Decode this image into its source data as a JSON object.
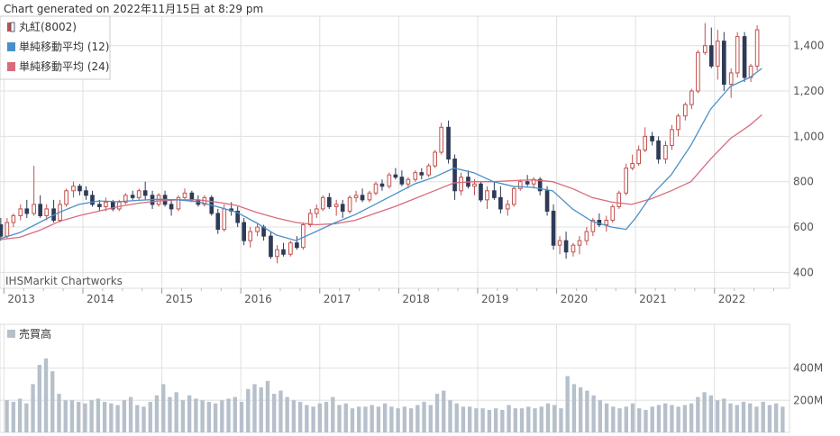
{
  "generated_text": "Chart generated on 2022年11月15日 at 8:29 pm",
  "watermark": "IHSMarkit Chartworks",
  "legend": [
    {
      "label": "丸紅(8002)",
      "color": "#c0504d",
      "kind": "candle"
    },
    {
      "label": "単純移動平均 (12)",
      "color": "#4a90c8",
      "kind": "box"
    },
    {
      "label": "単純移動平均 (24)",
      "color": "#d96b7d",
      "kind": "box"
    }
  ],
  "volume_legend": {
    "label": "売買高",
    "color": "#b6c0cb"
  },
  "colors": {
    "up": "#c0504d",
    "down": "#2e3a56",
    "sma12": "#4a90c8",
    "sma24": "#d96b7d",
    "volume": "#b6c0cb",
    "grid": "#e0e0e0"
  },
  "chart_data": [
    {
      "type": "candlestick",
      "series": [
        {
          "name": "丸紅(8002)",
          "role": "ohlc"
        },
        {
          "name": "単純移動平均 (12)",
          "role": "sma",
          "window": 12
        },
        {
          "name": "単純移動平均 (24)",
          "role": "sma",
          "window": 24
        }
      ],
      "x_labels": [
        "2013",
        "2014",
        "2015",
        "2016",
        "2017",
        "2018",
        "2019",
        "2020",
        "2021",
        "2022"
      ],
      "xlim": [
        2012.95,
        2022.95
      ],
      "y_ticks": [
        "400",
        "600",
        "800",
        "1,000",
        "1,200",
        "1,400"
      ],
      "y_tick_values": [
        400,
        600,
        800,
        1000,
        1200,
        1400
      ],
      "ylim": [
        330,
        1530
      ],
      "ohlc": [
        [
          2012.96,
          610,
          640,
          540,
          560
        ],
        [
          2013.04,
          560,
          640,
          550,
          620
        ],
        [
          2013.12,
          620,
          660,
          600,
          650
        ],
        [
          2013.21,
          650,
          700,
          630,
          680
        ],
        [
          2013.29,
          680,
          720,
          640,
          660
        ],
        [
          2013.38,
          660,
          870,
          650,
          700
        ],
        [
          2013.46,
          700,
          740,
          640,
          650
        ],
        [
          2013.54,
          650,
          700,
          630,
          680
        ],
        [
          2013.63,
          680,
          720,
          620,
          630
        ],
        [
          2013.71,
          630,
          720,
          620,
          700
        ],
        [
          2013.79,
          700,
          770,
          690,
          760
        ],
        [
          2013.88,
          760,
          800,
          730,
          780
        ],
        [
          2013.96,
          780,
          790,
          740,
          760
        ],
        [
          2014.04,
          760,
          780,
          720,
          740
        ],
        [
          2014.12,
          740,
          760,
          690,
          700
        ],
        [
          2014.21,
          700,
          720,
          670,
          690
        ],
        [
          2014.29,
          690,
          730,
          670,
          710
        ],
        [
          2014.38,
          710,
          720,
          670,
          680
        ],
        [
          2014.46,
          680,
          720,
          670,
          710
        ],
        [
          2014.54,
          710,
          750,
          700,
          740
        ],
        [
          2014.63,
          740,
          760,
          720,
          730
        ],
        [
          2014.71,
          730,
          770,
          720,
          760
        ],
        [
          2014.79,
          760,
          800,
          720,
          740
        ],
        [
          2014.88,
          740,
          760,
          680,
          700
        ],
        [
          2014.96,
          700,
          750,
          690,
          740
        ],
        [
          2015.04,
          740,
          760,
          690,
          700
        ],
        [
          2015.12,
          700,
          720,
          650,
          680
        ],
        [
          2015.21,
          680,
          740,
          670,
          730
        ],
        [
          2015.29,
          730,
          770,
          720,
          750
        ],
        [
          2015.38,
          750,
          760,
          710,
          720
        ],
        [
          2015.46,
          720,
          740,
          690,
          700
        ],
        [
          2015.54,
          700,
          740,
          690,
          730
        ],
        [
          2015.63,
          730,
          740,
          650,
          660
        ],
        [
          2015.71,
          660,
          680,
          570,
          590
        ],
        [
          2015.79,
          590,
          700,
          580,
          680
        ],
        [
          2015.88,
          680,
          710,
          650,
          670
        ],
        [
          2015.96,
          670,
          690,
          600,
          620
        ],
        [
          2016.04,
          620,
          640,
          520,
          540
        ],
        [
          2016.12,
          540,
          600,
          510,
          580
        ],
        [
          2016.21,
          580,
          620,
          560,
          600
        ],
        [
          2016.29,
          600,
          610,
          540,
          560
        ],
        [
          2016.38,
          560,
          580,
          460,
          470
        ],
        [
          2016.46,
          470,
          520,
          440,
          500
        ],
        [
          2016.54,
          500,
          530,
          470,
          480
        ],
        [
          2016.63,
          480,
          540,
          470,
          530
        ],
        [
          2016.71,
          530,
          560,
          500,
          510
        ],
        [
          2016.79,
          510,
          620,
          500,
          610
        ],
        [
          2016.88,
          610,
          680,
          600,
          660
        ],
        [
          2016.96,
          660,
          700,
          640,
          680
        ],
        [
          2017.04,
          680,
          740,
          670,
          730
        ],
        [
          2017.12,
          730,
          750,
          680,
          690
        ],
        [
          2017.21,
          690,
          720,
          650,
          700
        ],
        [
          2017.29,
          700,
          720,
          640,
          670
        ],
        [
          2017.38,
          670,
          740,
          660,
          730
        ],
        [
          2017.46,
          730,
          760,
          710,
          740
        ],
        [
          2017.54,
          740,
          770,
          710,
          720
        ],
        [
          2017.63,
          720,
          760,
          710,
          750
        ],
        [
          2017.71,
          750,
          800,
          740,
          790
        ],
        [
          2017.79,
          790,
          810,
          760,
          780
        ],
        [
          2017.88,
          780,
          840,
          770,
          830
        ],
        [
          2017.96,
          830,
          860,
          810,
          820
        ],
        [
          2018.04,
          820,
          850,
          780,
          790
        ],
        [
          2018.12,
          790,
          820,
          770,
          810
        ],
        [
          2018.21,
          810,
          850,
          800,
          840
        ],
        [
          2018.29,
          840,
          860,
          810,
          830
        ],
        [
          2018.38,
          830,
          880,
          820,
          870
        ],
        [
          2018.46,
          870,
          940,
          860,
          930
        ],
        [
          2018.54,
          930,
          1060,
          920,
          1040
        ],
        [
          2018.63,
          1040,
          1070,
          880,
          900
        ],
        [
          2018.71,
          900,
          920,
          720,
          760
        ],
        [
          2018.79,
          760,
          840,
          740,
          820
        ],
        [
          2018.88,
          820,
          850,
          770,
          780
        ],
        [
          2018.96,
          780,
          810,
          740,
          790
        ],
        [
          2019.04,
          790,
          800,
          710,
          720
        ],
        [
          2019.12,
          720,
          780,
          680,
          760
        ],
        [
          2019.21,
          760,
          800,
          720,
          730
        ],
        [
          2019.29,
          730,
          780,
          660,
          680
        ],
        [
          2019.38,
          680,
          720,
          650,
          700
        ],
        [
          2019.46,
          700,
          780,
          690,
          770
        ],
        [
          2019.54,
          770,
          810,
          760,
          800
        ],
        [
          2019.63,
          800,
          830,
          780,
          790
        ],
        [
          2019.71,
          790,
          820,
          770,
          810
        ],
        [
          2019.79,
          810,
          820,
          740,
          760
        ],
        [
          2019.88,
          760,
          780,
          650,
          670
        ],
        [
          2019.96,
          670,
          700,
          500,
          520
        ],
        [
          2020.04,
          520,
          560,
          480,
          540
        ],
        [
          2020.12,
          540,
          580,
          460,
          490
        ],
        [
          2020.21,
          490,
          530,
          470,
          520
        ],
        [
          2020.29,
          520,
          560,
          480,
          540
        ],
        [
          2020.38,
          540,
          600,
          520,
          580
        ],
        [
          2020.46,
          580,
          640,
          560,
          630
        ],
        [
          2020.54,
          630,
          660,
          600,
          610
        ],
        [
          2020.63,
          610,
          650,
          580,
          630
        ],
        [
          2020.71,
          630,
          700,
          620,
          690
        ],
        [
          2020.79,
          690,
          760,
          680,
          750
        ],
        [
          2020.88,
          750,
          880,
          740,
          860
        ],
        [
          2020.96,
          860,
          920,
          850,
          880
        ],
        [
          2021.04,
          880,
          960,
          870,
          940
        ],
        [
          2021.12,
          940,
          1040,
          930,
          1000
        ],
        [
          2021.21,
          1000,
          1020,
          960,
          980
        ],
        [
          2021.29,
          980,
          1000,
          880,
          900
        ],
        [
          2021.38,
          900,
          980,
          880,
          960
        ],
        [
          2021.46,
          960,
          1050,
          940,
          1030
        ],
        [
          2021.54,
          1030,
          1100,
          1000,
          1090
        ],
        [
          2021.63,
          1090,
          1150,
          1070,
          1140
        ],
        [
          2021.71,
          1140,
          1210,
          1120,
          1200
        ],
        [
          2021.79,
          1200,
          1380,
          1190,
          1370
        ],
        [
          2021.88,
          1370,
          1500,
          1360,
          1400
        ],
        [
          2021.96,
          1400,
          1480,
          1300,
          1310
        ],
        [
          2022.04,
          1310,
          1470,
          1250,
          1420
        ],
        [
          2022.12,
          1420,
          1460,
          1200,
          1230
        ],
        [
          2022.21,
          1230,
          1300,
          1170,
          1280
        ],
        [
          2022.29,
          1280,
          1460,
          1260,
          1440
        ],
        [
          2022.38,
          1440,
          1460,
          1240,
          1260
        ],
        [
          2022.46,
          1260,
          1320,
          1240,
          1310
        ],
        [
          2022.54,
          1310,
          1490,
          1290,
          1470
        ]
      ],
      "sma12": [
        [
          2012.96,
          550
        ],
        [
          2013.2,
          575
        ],
        [
          2013.45,
          620
        ],
        [
          2013.7,
          665
        ],
        [
          2013.95,
          700
        ],
        [
          2014.2,
          715
        ],
        [
          2014.45,
          712
        ],
        [
          2014.7,
          718
        ],
        [
          2014.95,
          722
        ],
        [
          2015.2,
          720
        ],
        [
          2015.45,
          712
        ],
        [
          2015.7,
          690
        ],
        [
          2015.95,
          665
        ],
        [
          2016.2,
          618
        ],
        [
          2016.45,
          565
        ],
        [
          2016.7,
          540
        ],
        [
          2016.95,
          580
        ],
        [
          2017.2,
          620
        ],
        [
          2017.45,
          655
        ],
        [
          2017.7,
          700
        ],
        [
          2017.95,
          745
        ],
        [
          2018.2,
          790
        ],
        [
          2018.45,
          820
        ],
        [
          2018.7,
          860
        ],
        [
          2018.95,
          840
        ],
        [
          2019.2,
          800
        ],
        [
          2019.45,
          780
        ],
        [
          2019.7,
          775
        ],
        [
          2019.95,
          760
        ],
        [
          2020.2,
          680
        ],
        [
          2020.45,
          625
        ],
        [
          2020.7,
          600
        ],
        [
          2020.88,
          590
        ],
        [
          2021.0,
          640
        ],
        [
          2021.2,
          740
        ],
        [
          2021.45,
          830
        ],
        [
          2021.7,
          960
        ],
        [
          2021.95,
          1120
        ],
        [
          2022.2,
          1220
        ],
        [
          2022.45,
          1260
        ],
        [
          2022.6,
          1300
        ]
      ],
      "sma24": [
        [
          2012.96,
          545
        ],
        [
          2013.2,
          555
        ],
        [
          2013.45,
          585
        ],
        [
          2013.7,
          625
        ],
        [
          2013.95,
          650
        ],
        [
          2014.2,
          670
        ],
        [
          2014.45,
          690
        ],
        [
          2014.7,
          705
        ],
        [
          2014.95,
          715
        ],
        [
          2015.2,
          720
        ],
        [
          2015.45,
          720
        ],
        [
          2015.7,
          710
        ],
        [
          2015.95,
          695
        ],
        [
          2016.2,
          665
        ],
        [
          2016.45,
          640
        ],
        [
          2016.7,
          620
        ],
        [
          2016.95,
          610
        ],
        [
          2017.2,
          615
        ],
        [
          2017.45,
          630
        ],
        [
          2017.7,
          660
        ],
        [
          2017.95,
          690
        ],
        [
          2018.2,
          725
        ],
        [
          2018.45,
          760
        ],
        [
          2018.7,
          795
        ],
        [
          2018.95,
          800
        ],
        [
          2019.2,
          800
        ],
        [
          2019.45,
          805
        ],
        [
          2019.7,
          808
        ],
        [
          2019.95,
          800
        ],
        [
          2020.2,
          770
        ],
        [
          2020.45,
          730
        ],
        [
          2020.7,
          710
        ],
        [
          2020.95,
          700
        ],
        [
          2021.2,
          725
        ],
        [
          2021.45,
          760
        ],
        [
          2021.7,
          800
        ],
        [
          2021.95,
          900
        ],
        [
          2022.2,
          990
        ],
        [
          2022.45,
          1050
        ],
        [
          2022.6,
          1095
        ]
      ]
    },
    {
      "type": "bar",
      "name": "売買高",
      "y_ticks": [
        "200M",
        "400M"
      ],
      "y_tick_values": [
        200,
        400
      ],
      "ylim": [
        0,
        560
      ],
      "values": [
        200,
        190,
        210,
        180,
        300,
        420,
        460,
        380,
        240,
        200,
        200,
        190,
        180,
        200,
        210,
        190,
        180,
        170,
        200,
        220,
        170,
        160,
        190,
        230,
        300,
        220,
        250,
        200,
        230,
        210,
        200,
        190,
        180,
        200,
        210,
        220,
        190,
        270,
        300,
        280,
        320,
        240,
        260,
        220,
        200,
        190,
        170,
        160,
        180,
        190,
        220,
        170,
        180,
        150,
        160,
        160,
        170,
        160,
        180,
        160,
        150,
        160,
        150,
        170,
        190,
        170,
        240,
        260,
        200,
        180,
        160,
        160,
        150,
        150,
        140,
        150,
        140,
        170,
        150,
        150,
        160,
        150,
        160,
        180,
        170,
        150,
        350,
        300,
        280,
        260,
        230,
        200,
        180,
        160,
        150,
        160,
        180,
        150,
        140,
        160,
        170,
        180,
        170,
        160,
        170,
        180,
        220,
        250,
        230,
        200,
        210,
        180,
        170,
        190,
        180,
        160,
        190,
        170,
        180,
        160
      ]
    }
  ]
}
